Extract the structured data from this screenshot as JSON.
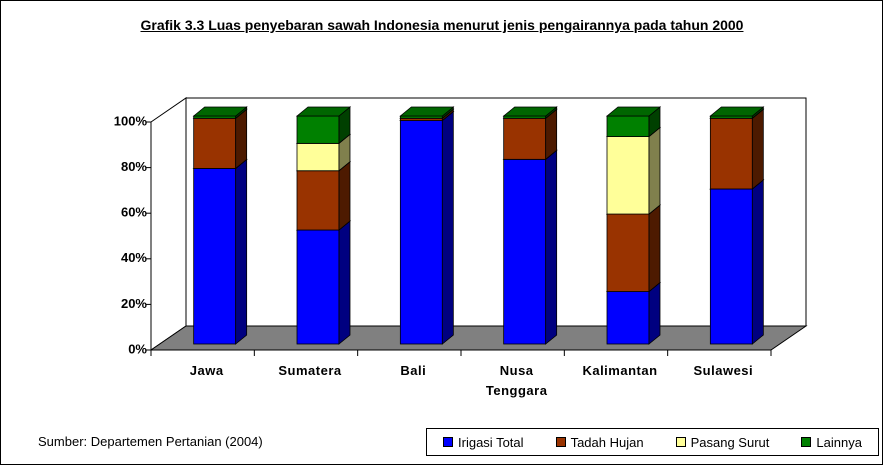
{
  "chart_data": {
    "type": "bar3d_stacked",
    "title": "Grafik 3.3 Luas penyebaran sawah Indonesia menurut jenis pengairannya pada tahun 2000",
    "source": "Sumber: Departemen Pertanian (2004)",
    "categories": [
      "Jawa",
      "Sumatera",
      "Bali",
      "Nusa Tenggara",
      "Kalimantan",
      "Sulawesi"
    ],
    "series": [
      {
        "name": "Irigasi Total",
        "color": "#0000ff",
        "values": [
          77,
          50,
          98,
          81,
          23,
          68
        ]
      },
      {
        "name": "Tadah Hujan",
        "color": "#993300",
        "values": [
          22,
          26,
          1,
          18,
          34,
          31
        ]
      },
      {
        "name": "Pasang Surut",
        "color": "#ffff99",
        "values": [
          0,
          12,
          0,
          0,
          34,
          0
        ]
      },
      {
        "name": "Lainnya",
        "color": "#008000",
        "values": [
          1,
          12,
          1,
          1,
          9,
          1
        ]
      }
    ],
    "ylim": [
      0,
      100
    ],
    "yticks": [
      {
        "value": 0,
        "label": "0%"
      },
      {
        "value": 20,
        "label": "20%"
      },
      {
        "value": 40,
        "label": "40%"
      },
      {
        "value": 60,
        "label": "60%"
      },
      {
        "value": 80,
        "label": "80%"
      },
      {
        "value": 100,
        "label": "100%"
      }
    ]
  }
}
